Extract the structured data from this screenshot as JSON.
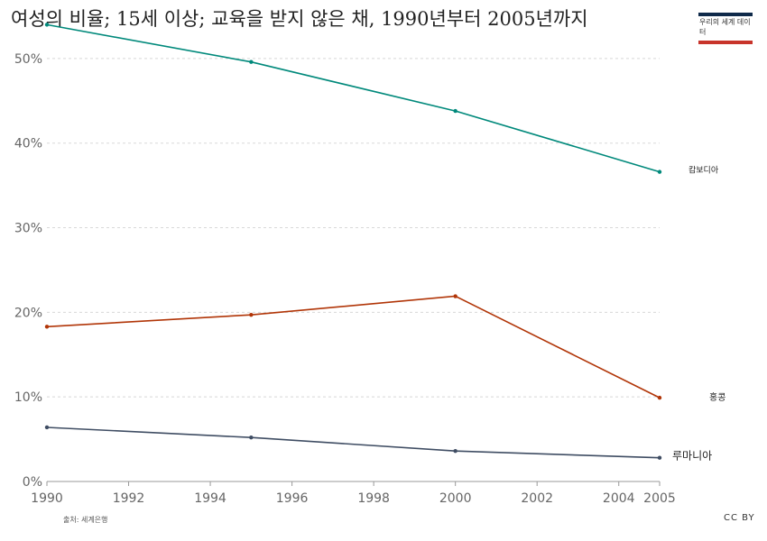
{
  "title": "여성의 비율; 15세 이상; 교육을 받지 않은 채, 1990년부터 2005년까지",
  "logo_text": "우리의 세계 데이터",
  "source": "출처: 세계은행",
  "license": "CC BY",
  "chart_data": {
    "type": "line",
    "title": "여성의 비율; 15세 이상; 교육을 받지 않은 채, 1990년부터 2005년까지",
    "x": [
      1990,
      1995,
      2000,
      2005
    ],
    "xlim": [
      1990,
      2005
    ],
    "ylim": [
      0,
      55
    ],
    "x_ticks": [
      "1990",
      "1992",
      "1994",
      "1996",
      "1998",
      "2000",
      "2002",
      "2004",
      "2005"
    ],
    "y_ticks": [
      "0%",
      "10%",
      "20%",
      "30%",
      "40%",
      "50%"
    ],
    "grid": true,
    "legend": "labels at line ends (right)",
    "series": [
      {
        "name": "캄보디아",
        "values": [
          54.0,
          49.6,
          43.8,
          36.6
        ],
        "color": "#00897b"
      },
      {
        "name": "홍콩",
        "values": [
          18.3,
          19.7,
          21.9,
          9.9
        ],
        "color": "#b13507"
      },
      {
        "name": "루마니아",
        "values": [
          6.4,
          5.2,
          3.6,
          2.8
        ],
        "color": "#3f4d63"
      }
    ]
  }
}
